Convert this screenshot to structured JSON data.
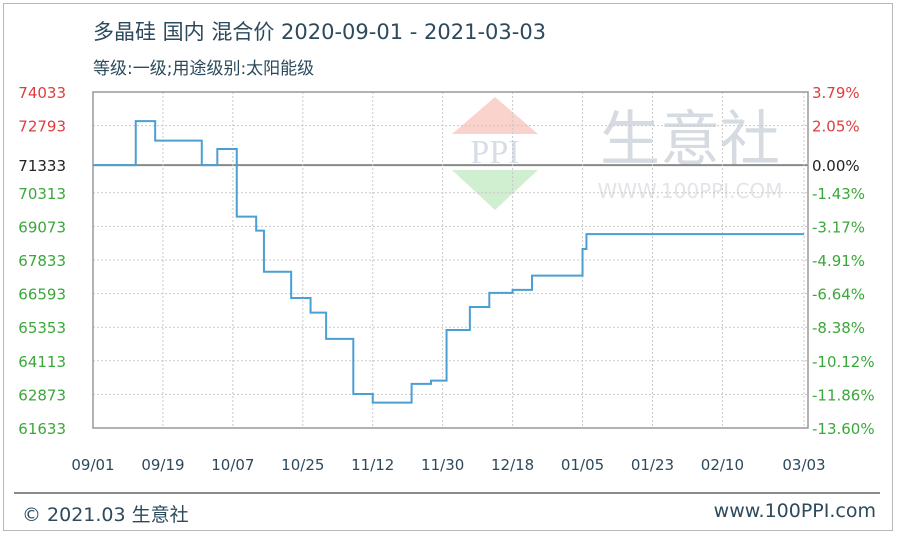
{
  "chart_data": {
    "type": "line",
    "title": "多晶硅 国内 混合价 2020-09-01 - 2021-03-03",
    "subtitle": "等级:一级;用途级别:太阳能级",
    "ylim": [
      61633,
      74033
    ],
    "y_ticks": [
      74033,
      72793,
      71333,
      70313,
      69073,
      67833,
      66593,
      65353,
      64113,
      62873,
      61633
    ],
    "y_tick_colors": [
      "#e03c3c",
      "#e03c3c",
      "#222222",
      "#3aa83a",
      "#3aa83a",
      "#3aa83a",
      "#3aa83a",
      "#3aa83a",
      "#3aa83a",
      "#3aa83a",
      "#3aa83a"
    ],
    "y2_ticks": [
      "3.79%",
      "2.05%",
      "0.00%",
      "-1.43%",
      "-3.17%",
      "-4.91%",
      "-6.64%",
      "-8.38%",
      "-10.12%",
      "-11.86%",
      "-13.60%"
    ],
    "baseline": 71333,
    "x_ticks": [
      "09/01",
      "09/19",
      "10/07",
      "10/25",
      "11/12",
      "11/30",
      "12/18",
      "01/05",
      "01/23",
      "02/10",
      "03/03"
    ],
    "x_tick_dates": [
      "2020-09-01",
      "2020-09-19",
      "2020-10-07",
      "2020-10-25",
      "2020-11-12",
      "2020-11-30",
      "2020-12-18",
      "2021-01-05",
      "2021-01-23",
      "2021-02-10",
      "2021-03-03"
    ],
    "xlim": [
      "2020-09-01",
      "2021-03-03"
    ],
    "grid": true,
    "line_color": "#4a9fd4",
    "step": true,
    "points": [
      [
        "2020-09-01",
        71333
      ],
      [
        "2020-09-12",
        72960
      ],
      [
        "2020-09-17",
        72240
      ],
      [
        "2020-09-29",
        71333
      ],
      [
        "2020-10-03",
        71930
      ],
      [
        "2020-10-08",
        69433
      ],
      [
        "2020-10-13",
        68917
      ],
      [
        "2020-10-15",
        67400
      ],
      [
        "2020-10-22",
        66430
      ],
      [
        "2020-10-27",
        65890
      ],
      [
        "2020-10-31",
        64920
      ],
      [
        "2020-11-07",
        62890
      ],
      [
        "2020-11-12",
        62570
      ],
      [
        "2020-11-22",
        63260
      ],
      [
        "2020-11-27",
        63380
      ],
      [
        "2020-12-01",
        65250
      ],
      [
        "2020-12-07",
        66100
      ],
      [
        "2020-12-12",
        66620
      ],
      [
        "2020-12-18",
        66730
      ],
      [
        "2020-12-23",
        67255
      ],
      [
        "2021-01-05",
        68240
      ],
      [
        "2021-01-06",
        68790
      ],
      [
        "2021-03-03",
        68790
      ]
    ]
  },
  "watermark": {
    "text": "生意社",
    "url_text": "WWW.100PPI.COM",
    "logo_letters": "PPI"
  },
  "footer": {
    "copyright": "© 2021.03 生意社",
    "site": "www.100PPI.com"
  }
}
